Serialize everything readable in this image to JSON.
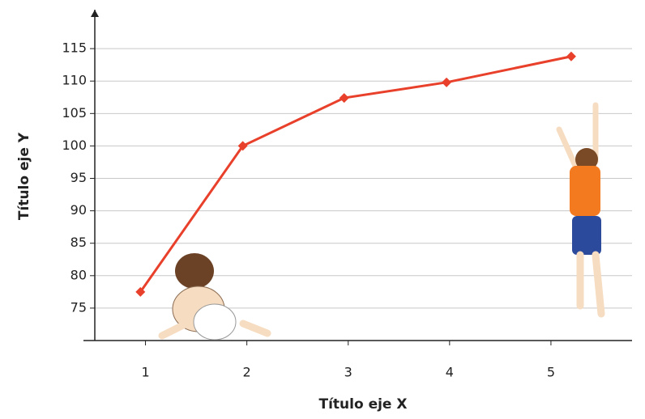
{
  "chart_data": {
    "type": "line",
    "x_label": "Título eje X",
    "y_label": "Título eje Y",
    "x": [
      0.95,
      1.96,
      2.96,
      3.97,
      5.2
    ],
    "series": [
      {
        "color": "#e8402a",
        "values": [
          77.5,
          100,
          107.4,
          109.8,
          113.8
        ]
      }
    ],
    "xlim": [
      0.5,
      5.8
    ],
    "xticks": [
      1,
      2,
      3,
      4,
      5
    ],
    "ylim": [
      70,
      121
    ],
    "yticks": [
      75,
      80,
      85,
      90,
      95,
      100,
      105,
      110,
      115
    ],
    "grid": true
  }
}
